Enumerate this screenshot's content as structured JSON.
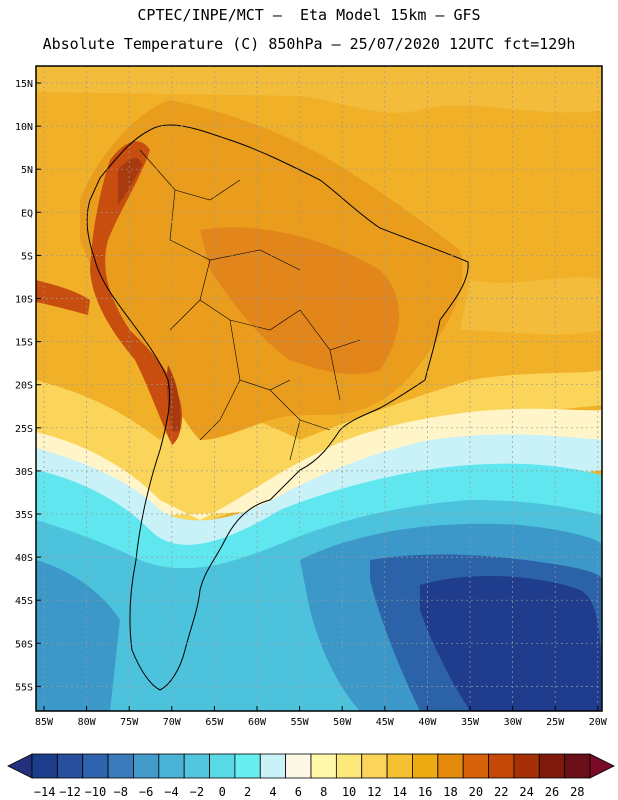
{
  "header": {
    "line1": "CPTEC/INPE/MCT –  Eta Model 15km – GFS",
    "line2": "Absolute Temperature (C) 850hPa – 25/07/2020 12UTC fct=129h"
  },
  "axes": {
    "lat_labels": [
      "15N",
      "10N",
      "5N",
      "EQ",
      "5S",
      "10S",
      "15S",
      "20S",
      "25S",
      "30S",
      "35S",
      "40S",
      "45S",
      "50S",
      "55S"
    ],
    "lon_labels": [
      "85W",
      "80W",
      "75W",
      "70W",
      "65W",
      "60W",
      "55W",
      "50W",
      "45W",
      "40W",
      "35W",
      "30W",
      "25W",
      "20W"
    ]
  },
  "colorbar": {
    "labels": [
      "−14",
      "−12",
      "−10",
      "−8",
      "−6",
      "−4",
      "−2",
      "0",
      "2",
      "4",
      "6",
      "8",
      "10",
      "12",
      "14",
      "16",
      "18",
      "20",
      "22",
      "24",
      "26",
      "28"
    ],
    "colors": [
      "#1e3c8c",
      "#284f9b",
      "#2f63ad",
      "#3a7bbc",
      "#429bca",
      "#4ab3d6",
      "#53c6df",
      "#59d8e6",
      "#66eef0",
      "#c8f2f8",
      "#fdf8e6",
      "#fff8a8",
      "#fde87a",
      "#fad55a",
      "#f5c032",
      "#eeaa12",
      "#e38a0c",
      "#d8620a",
      "#c44808",
      "#a53008",
      "#7e1a0c",
      "#6a0f1a"
    ],
    "under_color": "#23317d",
    "over_color": "#7a0a26"
  },
  "map_colors": {
    "ocean_warm": "#f0b028",
    "warm_band": "#f3bc3a",
    "mild": "#fbd45a",
    "land_main": "#ea9d1c",
    "land_hot": "#e2851a",
    "andes_hot": "#c84e10",
    "andes_peak": "#a83a10",
    "cool_transition": "#fff5c8",
    "near_zero": "#c8f2f8",
    "cold_cyan": "#60e6ee",
    "colder": "#4cc2dc",
    "cold_blue": "#3b98c8",
    "deep_blue": "#2c62a8",
    "deepest": "#1f3d8c"
  }
}
